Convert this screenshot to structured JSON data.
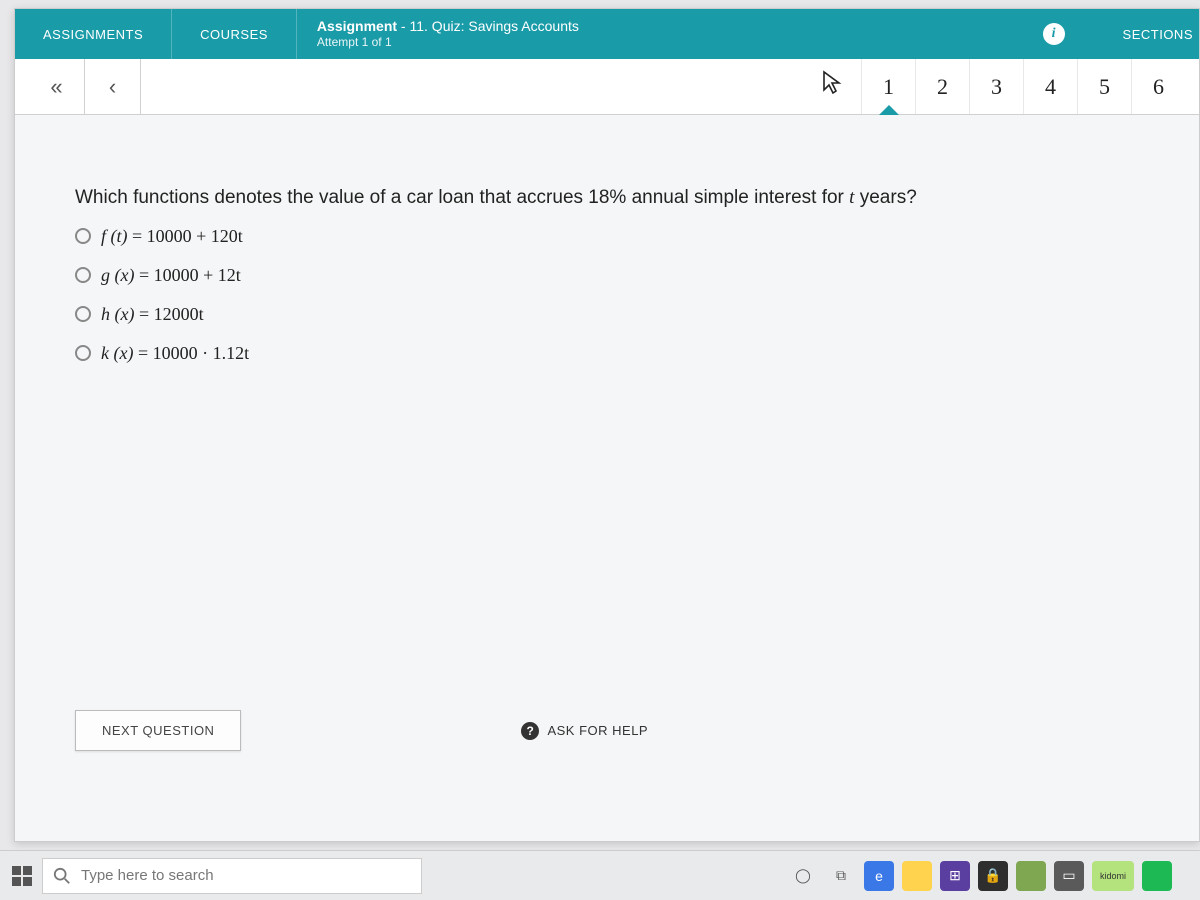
{
  "colors": {
    "teal": "#1a9ba8",
    "page_bg": "#e8e8ea",
    "window_bg": "#f5f6f7",
    "text": "#222222",
    "muted": "#777777",
    "border": "#cccccc"
  },
  "header": {
    "tab_assignments": "ASSIGNMENTS",
    "tab_courses": "COURSES",
    "assignment_label": "Assignment",
    "assignment_title": " - 11. Quiz: Savings Accounts",
    "attempt_line": "Attempt 1 of 1",
    "info_icon": "i",
    "sections_label": "SECTIONS"
  },
  "qnav": {
    "first": "«",
    "prev": "‹",
    "numbers": [
      "1",
      "2",
      "3",
      "4",
      "5",
      "6"
    ],
    "active_index": 0
  },
  "question": {
    "prompt_prefix": "Which functions denotes the value of a car loan that accrues 18% annual simple interest for ",
    "prompt_var": "t",
    "prompt_suffix": " years?",
    "options": [
      {
        "fn": "f (t)",
        "eq": " = 10000 + 120t"
      },
      {
        "fn": "g (x)",
        "eq": " = 10000 + 12t"
      },
      {
        "fn": "h (x)",
        "eq": " = 12000t"
      },
      {
        "fn": "k (x)",
        "eq": " = 10000 · 1.12t"
      }
    ]
  },
  "footer": {
    "next_label": "NEXT QUESTION",
    "help_label": "ASK FOR HELP",
    "help_icon": "?"
  },
  "taskbar": {
    "search_placeholder": "Type here to search",
    "apps": [
      {
        "bg": "transparent",
        "glyph": "◯",
        "color": "#555"
      },
      {
        "bg": "transparent",
        "glyph": "⧉",
        "color": "#555"
      },
      {
        "bg": "#3b78e7",
        "glyph": "e",
        "color": "#fff"
      },
      {
        "bg": "#ffd34e",
        "glyph": "",
        "color": "#333"
      },
      {
        "bg": "#5b3fa0",
        "glyph": "⊞",
        "color": "#fff"
      },
      {
        "bg": "#2e2e2e",
        "glyph": "🔒",
        "color": "#fff"
      },
      {
        "bg": "#7fa650",
        "glyph": "",
        "color": "#fff"
      },
      {
        "bg": "#5a5a5a",
        "glyph": "▭",
        "color": "#fff"
      },
      {
        "bg": "#b4e27d",
        "glyph": "kidomi",
        "color": "#333",
        "small": true
      },
      {
        "bg": "#1db954",
        "glyph": "",
        "color": "#fff"
      }
    ]
  }
}
